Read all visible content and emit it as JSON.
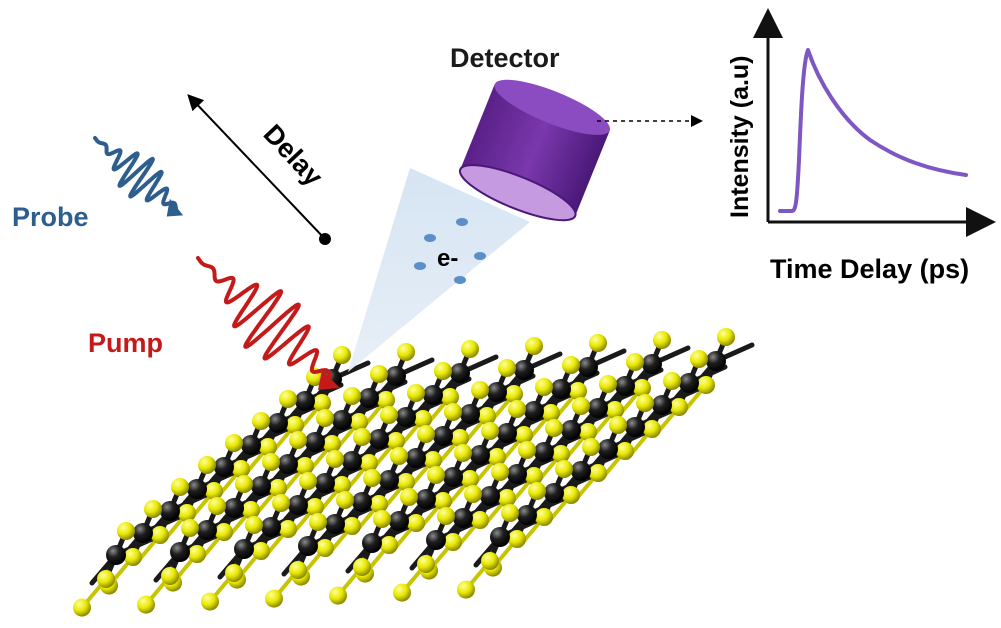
{
  "labels": {
    "detector": "Detector",
    "delay": "Delay",
    "probe": "Probe",
    "pump": "Pump",
    "electron": "e-",
    "y_axis": "Intensity (a.u)",
    "x_axis": "Time Delay (ps)"
  },
  "colors": {
    "probe": "#2e5e8e",
    "pump": "#c41a1a",
    "detector": "#6a2c9a",
    "detector_face": "#c59ae0",
    "curve": "#7e57c2",
    "cone": "#cfe0f0",
    "electron": "#5a8fc8",
    "sulfur": "#e8e800",
    "metal": "#151515"
  },
  "inset_plot": {
    "curve_shape": "fast rise then exponential decay",
    "axes": "x and y arrows, no ticks"
  },
  "crystal": {
    "description": "layered transition-metal dichalcogenide lattice",
    "rows": 9,
    "columns": 7
  }
}
